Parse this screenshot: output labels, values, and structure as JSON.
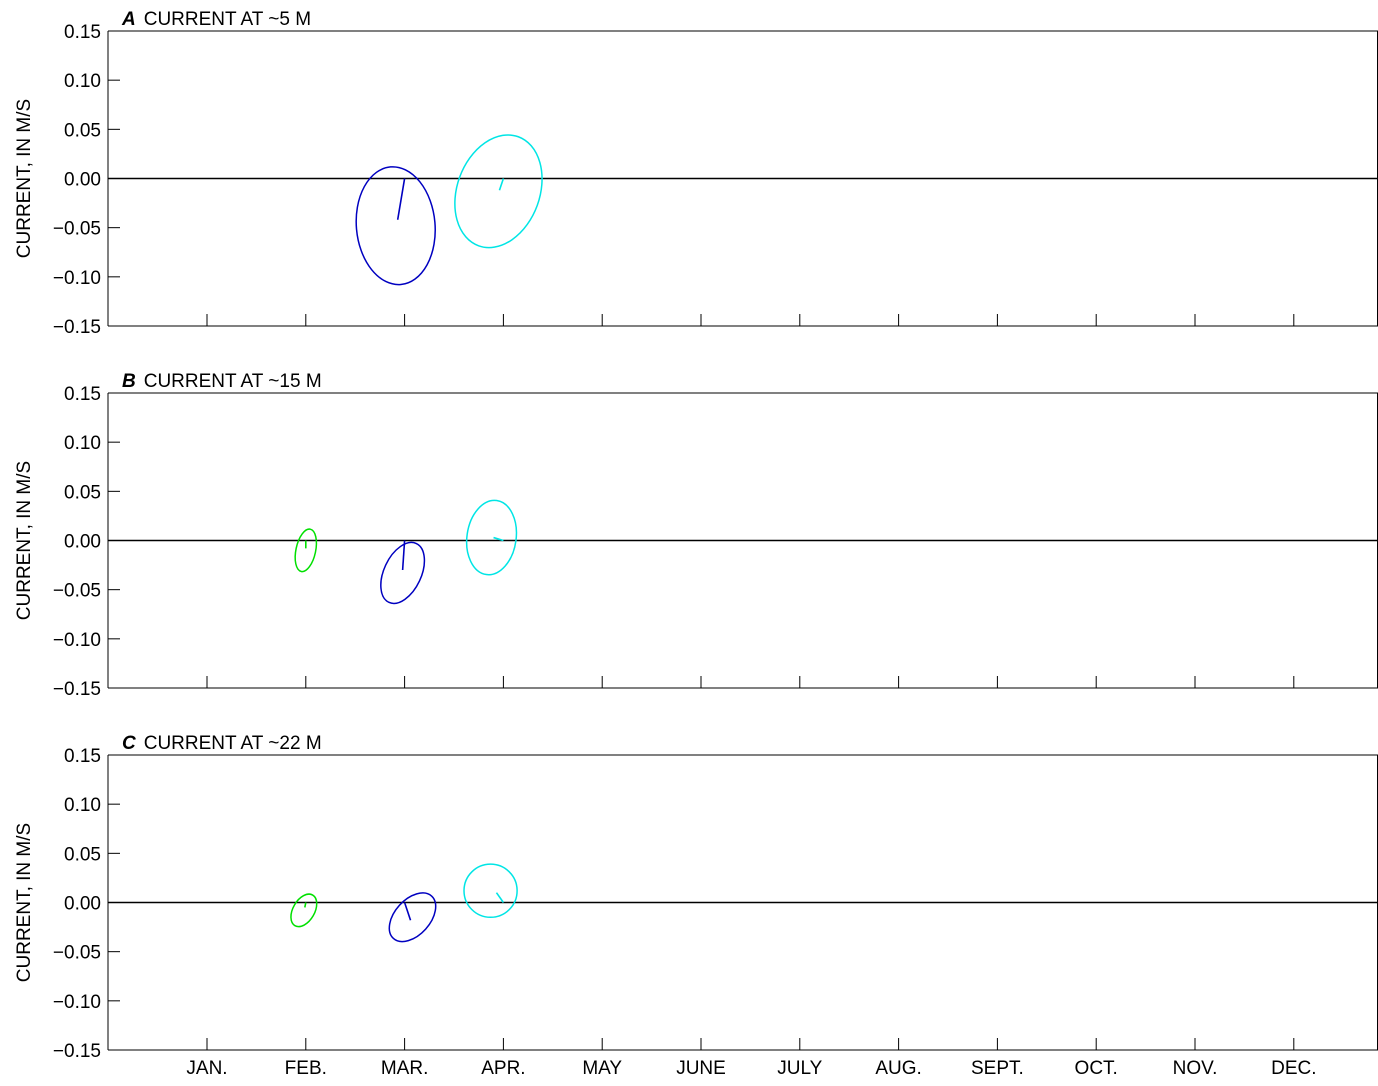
{
  "chart_data": {
    "type": "ellipse-vector",
    "x_categories": [
      "JAN.",
      "FEB.",
      "MAR.",
      "APR.",
      "MAY",
      "JUNE",
      "JULY",
      "AUG.",
      "SEPT.",
      "OCT.",
      "NOV.",
      "DEC."
    ],
    "yticks": [
      "0.15",
      "0.10",
      "0.05",
      "0.00",
      "−0.05",
      "−0.10",
      "−0.15"
    ],
    "ylim": [
      -0.15,
      0.15
    ],
    "ylabel": "CURRENT, IN M/S",
    "grid": false,
    "colors": {
      "FEB.": "#00e000",
      "MAR.": "#0000c0",
      "APR.": "#00e5e5"
    },
    "panels": [
      {
        "letter": "A",
        "title": "CURRENT AT ~5 M",
        "show_xlabels": false,
        "ellipses": [
          {
            "month": "MAR.",
            "color": "#0000c0",
            "center_offset_months": -0.09,
            "center_v": -0.048,
            "semi_major_ms": 0.06,
            "semi_minor_ms": 0.04,
            "tilt_deg": 5,
            "mean_u_months": -0.07,
            "mean_v": -0.042
          },
          {
            "month": "APR.",
            "color": "#00e5e5",
            "center_offset_months": -0.05,
            "center_v": -0.013,
            "semi_major_ms": 0.059,
            "semi_minor_ms": 0.042,
            "tilt_deg": -20,
            "mean_u_months": -0.04,
            "mean_v": -0.012
          }
        ]
      },
      {
        "letter": "B",
        "title": "CURRENT AT ~15 M",
        "show_xlabels": false,
        "ellipses": [
          {
            "month": "FEB.",
            "color": "#00e000",
            "center_offset_months": 0.0,
            "center_v": -0.01,
            "semi_major_ms": 0.022,
            "semi_minor_ms": 0.01,
            "tilt_deg": -12,
            "mean_u_months": 0.0,
            "mean_v": -0.008
          },
          {
            "month": "MAR.",
            "color": "#0000c0",
            "center_offset_months": -0.02,
            "center_v": -0.033,
            "semi_major_ms": 0.033,
            "semi_minor_ms": 0.019,
            "tilt_deg": -25,
            "mean_u_months": -0.02,
            "mean_v": -0.03
          },
          {
            "month": "APR.",
            "color": "#00e5e5",
            "center_offset_months": -0.12,
            "center_v": 0.003,
            "semi_major_ms": 0.038,
            "semi_minor_ms": 0.025,
            "tilt_deg": -8,
            "mean_u_months": -0.1,
            "mean_v": 0.003
          }
        ]
      },
      {
        "letter": "C",
        "title": "CURRENT AT ~22 M",
        "show_xlabels": true,
        "ellipses": [
          {
            "month": "FEB.",
            "color": "#00e000",
            "center_offset_months": -0.02,
            "center_v": -0.008,
            "semi_major_ms": 0.018,
            "semi_minor_ms": 0.011,
            "tilt_deg": -30,
            "mean_u_months": -0.01,
            "mean_v": -0.005
          },
          {
            "month": "MAR.",
            "color": "#0000c0",
            "center_offset_months": 0.08,
            "center_v": -0.015,
            "semi_major_ms": 0.029,
            "semi_minor_ms": 0.018,
            "tilt_deg": -42,
            "mean_u_months": 0.06,
            "mean_v": -0.018
          },
          {
            "month": "APR.",
            "color": "#00e5e5",
            "center_offset_months": -0.13,
            "center_v": 0.012,
            "semi_major_ms": 0.027,
            "semi_minor_ms": 0.027,
            "tilt_deg": 0,
            "mean_u_months": -0.07,
            "mean_v": 0.01
          }
        ]
      }
    ]
  }
}
